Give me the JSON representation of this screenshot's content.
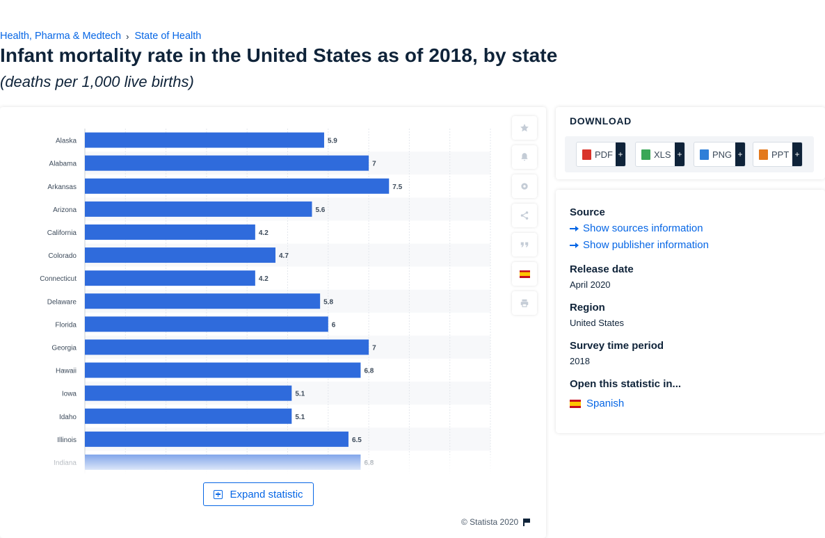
{
  "breadcrumb": [
    {
      "label": "Health, Pharma & Medtech"
    },
    {
      "label": "State of Health"
    }
  ],
  "breadcrumb_separator": "›",
  "title": "Infant mortality rate in the United States as of 2018, by state",
  "subtitle": "(deaths per 1,000 live births)",
  "chart_data": {
    "type": "bar",
    "orientation": "horizontal",
    "title": "",
    "xlabel": "",
    "ylabel": "",
    "xlim": [
      0,
      10
    ],
    "grid": true,
    "legend": "none",
    "bar_color": "#2f6bdc",
    "categories": [
      "Alaska",
      "Alabama",
      "Arkansas",
      "Arizona",
      "California",
      "Colorado",
      "Connecticut",
      "Delaware",
      "Florida",
      "Georgia",
      "Hawaii",
      "Iowa",
      "Idaho",
      "Illinois",
      "Indiana"
    ],
    "values": [
      5.9,
      7,
      7.5,
      5.6,
      4.2,
      4.7,
      4.2,
      5.8,
      6,
      7,
      6.8,
      5.1,
      5.1,
      6.5,
      6.8
    ],
    "value_labels": [
      "5.9",
      "7",
      "7.5",
      "5.6",
      "4.2",
      "4.7",
      "4.2",
      "5.8",
      "6",
      "7",
      "6.8",
      "5.1",
      "5.1",
      "6.5",
      "6.8"
    ]
  },
  "expand_label": "Expand statistic",
  "copyright": "© Statista 2020",
  "toolbar_icons": [
    "star-icon",
    "bell-icon",
    "gear-icon",
    "share-icon",
    "quote-icon",
    "spain-flag-icon",
    "print-icon"
  ],
  "download": {
    "heading": "DOWNLOAD",
    "buttons": [
      {
        "label": "PDF",
        "plus": "+",
        "color": "#d9342b"
      },
      {
        "label": "XLS",
        "plus": "+",
        "color": "#3aa757"
      },
      {
        "label": "PNG",
        "plus": "+",
        "color": "#2f7fd8"
      },
      {
        "label": "PPT",
        "plus": "+",
        "color": "#e3791d"
      }
    ]
  },
  "info": {
    "source_label": "Source",
    "show_sources": "Show sources information",
    "show_publisher": "Show publisher information",
    "release_label": "Release date",
    "release_value": "April 2020",
    "region_label": "Region",
    "region_value": "United States",
    "survey_label": "Survey time period",
    "survey_value": "2018",
    "open_label": "Open this statistic in...",
    "language": "Spanish"
  },
  "colors": {
    "accent": "#0666e5",
    "text": "#0f2339"
  }
}
